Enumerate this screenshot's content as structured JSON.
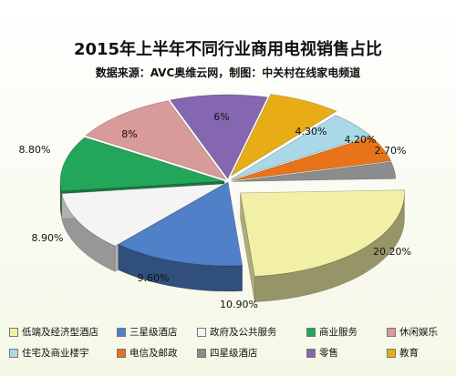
{
  "chart_data": {
    "type": "pie",
    "title": "2015年上半年不同行业商用电视销售占比",
    "subtitle": "数据来源：AVC奥维云网，制图：中关村在线家电频道",
    "slices": [
      {
        "name": "低端及经济型酒店",
        "value": 20.2,
        "label": "20.20%",
        "color": "#f2f0a6"
      },
      {
        "name": "三星级酒店",
        "value": 10.9,
        "label": "10.90%",
        "color": "#4f80c8"
      },
      {
        "name": "政府及公共服务",
        "value": 9.6,
        "label": "9.60%",
        "color": "#f4f4f4"
      },
      {
        "name": "商业服务",
        "value": 8.9,
        "label": "8.90%",
        "color": "#22a65a"
      },
      {
        "name": "休闲娱乐",
        "value": 8.8,
        "label": "8.80%",
        "color": "#d99a9a"
      },
      {
        "name": "零售",
        "value": 8,
        "label": "8%",
        "color": "#8566b0"
      },
      {
        "name": "教育",
        "value": 6,
        "label": "6%",
        "color": "#e8ad14"
      },
      {
        "name": "住宅及商业楼宇",
        "value": 4.3,
        "label": "4.30%",
        "color": "#a9d9e6"
      },
      {
        "name": "电信及邮政",
        "value": 4.2,
        "label": "4.20%",
        "color": "#e8731a"
      },
      {
        "name": "四星级酒店",
        "value": 2.7,
        "label": "2.70%",
        "color": "#8c8c8c"
      }
    ],
    "legend": [
      "低端及经济型酒店",
      "三星级酒店",
      "政府及公共服务",
      "商业服务",
      "休闲娱乐",
      "住宅及商业楼宇",
      "电信及邮政",
      "四星级酒店",
      "零售",
      "教育"
    ]
  }
}
